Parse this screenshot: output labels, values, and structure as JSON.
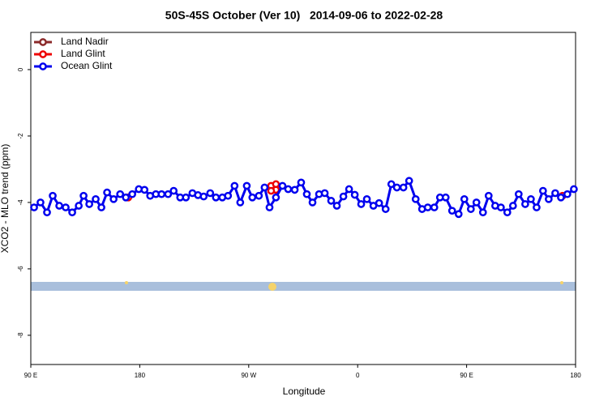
{
  "chart_data": {
    "type": "line",
    "title": "50S-45S October (Ver 10)   2014-09-06 to 2022-02-28",
    "x_label": "Longitude",
    "y_label": "XCO2 - MLO trend (ppm)",
    "xlim": [
      90,
      540
    ],
    "ylim": [
      -8.88,
      1.12
    ],
    "xticks": [
      {
        "value": 90,
        "label": "90 E"
      },
      180,
      {
        "value": 270,
        "label": "90 W"
      },
      {
        "value": 360,
        "label": "0"
      },
      {
        "value": 450,
        "label": "90 E"
      },
      {
        "value": 540,
        "label": "180"
      }
    ],
    "yticks": [
      0,
      -2,
      -4,
      -6,
      -8
    ],
    "legend": "top-left",
    "series": [
      {
        "name": "Land Nadir",
        "color": "#8b2a2a",
        "x": [],
        "values": []
      },
      {
        "name": "Land Glint",
        "color": "#ee0000",
        "x": [
          170.5,
          null,
          288.5,
          292.5,
          292.5,
          288.5,
          null,
          529.2
        ],
        "values": [
          -3.85,
          null,
          -3.5,
          -3.45,
          -3.62,
          -3.65,
          null,
          -3.8
        ]
      },
      {
        "name": "Ocean Glint",
        "color": "#0000ee",
        "x": [
          92.7,
          98.0,
          103.4,
          108.1,
          113.5,
          118.8,
          124.2,
          129.6,
          133.6,
          138.3,
          143.6,
          148.3,
          153.0,
          158.4,
          163.8,
          168.5,
          173.8,
          179.2,
          183.9,
          188.6,
          193.3,
          198.0,
          203.4,
          208.0,
          213.4,
          218.1,
          223.5,
          228.1,
          232.8,
          238.2,
          242.9,
          248.2,
          252.9,
          258.3,
          263.0,
          268.4,
          273.0,
          278.4,
          283.1,
          287.2,
          292.5,
          297.9,
          302.6,
          308.0,
          313.3,
          318.0,
          322.7,
          328.1,
          332.8,
          338.1,
          342.8,
          348.2,
          352.9,
          357.6,
          362.9,
          367.6,
          373.0,
          377.7,
          383.1,
          387.8,
          392.4,
          397.8,
          402.5,
          407.9,
          413.2,
          417.9,
          423.3,
          428.0,
          432.7,
          438.0,
          443.4,
          448.1,
          453.5,
          458.1,
          463.5,
          468.2,
          473.6,
          478.3,
          483.6,
          488.3,
          493.0,
          498.4,
          503.1,
          507.8,
          513.1,
          517.8,
          523.2,
          527.9,
          533.2,
          538.6
        ],
        "values": [
          -4.15,
          -4.0,
          -4.3,
          -3.8,
          -4.1,
          -4.15,
          -4.3,
          -4.1,
          -3.8,
          -4.05,
          -3.9,
          -4.15,
          -3.7,
          -3.9,
          -3.75,
          -3.85,
          -3.75,
          -3.6,
          -3.62,
          -3.8,
          -3.75,
          -3.75,
          -3.75,
          -3.65,
          -3.85,
          -3.85,
          -3.72,
          -3.78,
          -3.82,
          -3.72,
          -3.85,
          -3.85,
          -3.8,
          -3.5,
          -4.0,
          -3.5,
          -3.85,
          -3.8,
          -3.55,
          -4.15,
          -3.85,
          -3.5,
          -3.6,
          -3.62,
          -3.4,
          -3.75,
          -4.0,
          -3.75,
          -3.72,
          -3.95,
          -4.1,
          -3.82,
          -3.6,
          -3.77,
          -4.05,
          -3.9,
          -4.1,
          -4.02,
          -4.2,
          -3.45,
          -3.55,
          -3.55,
          -3.35,
          -3.9,
          -4.2,
          -4.15,
          -4.15,
          -3.85,
          -3.85,
          -4.25,
          -4.35,
          -3.9,
          -4.2,
          -4.0,
          -4.3,
          -3.8,
          -4.1,
          -4.15,
          -4.3,
          -4.1,
          -3.75,
          -4.05,
          -3.9,
          -4.15,
          -3.65,
          -3.9,
          -3.72,
          -3.85,
          -3.75,
          -3.6
        ]
      }
    ]
  }
}
